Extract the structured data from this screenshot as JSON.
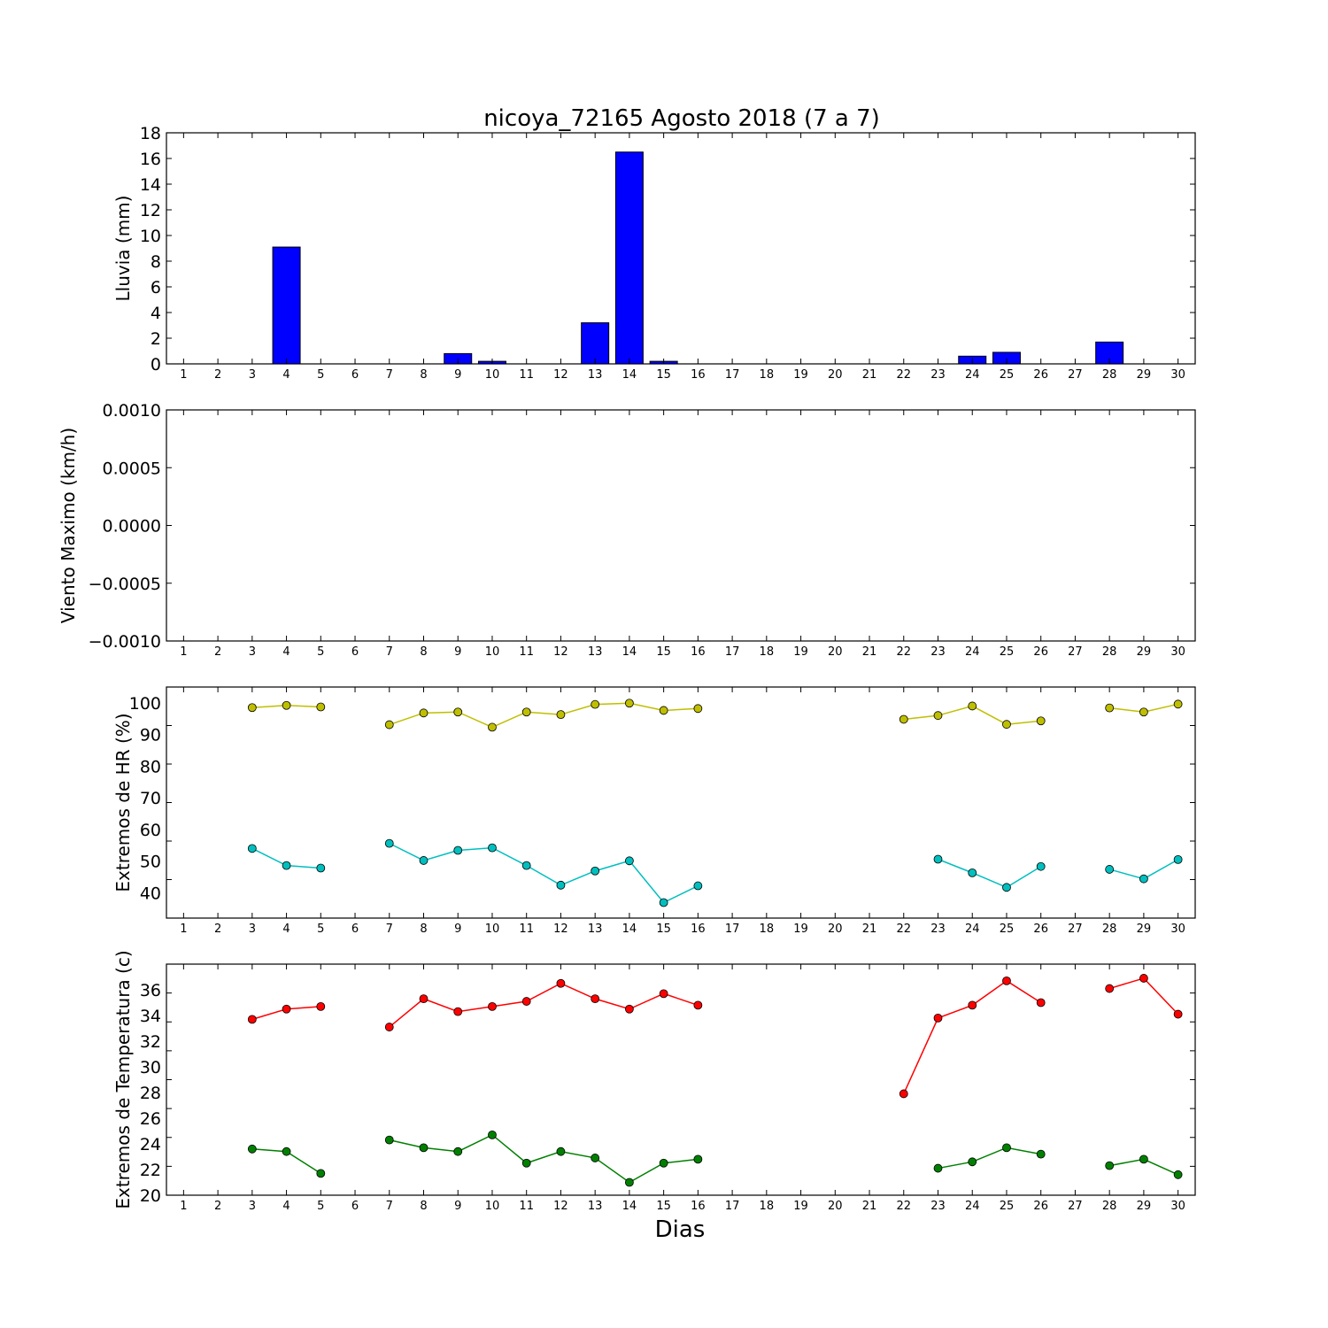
{
  "figure": {
    "title": "nicoya_72165 Agosto 2018  (7 a 7)",
    "xlabel": "Dias"
  },
  "chart_data": [
    {
      "type": "bar",
      "ylabel": "Lluvia (mm)",
      "xlim": [
        0.5,
        30.5
      ],
      "ylim": [
        0,
        18
      ],
      "yticks": [
        "0",
        "2",
        "4",
        "6",
        "8",
        "10",
        "12",
        "14",
        "16",
        "18"
      ],
      "categories": [
        "1",
        "2",
        "3",
        "4",
        "5",
        "6",
        "7",
        "8",
        "9",
        "10",
        "11",
        "12",
        "13",
        "14",
        "15",
        "16",
        "17",
        "18",
        "19",
        "20",
        "21",
        "22",
        "23",
        "24",
        "25",
        "26",
        "27",
        "28",
        "29",
        "30"
      ],
      "values": [
        0,
        0,
        0,
        9.1,
        0,
        0,
        0,
        0,
        0.8,
        0.2,
        0,
        0,
        3.2,
        16.5,
        0.2,
        0,
        0,
        0,
        0,
        0,
        0,
        0,
        0,
        0.6,
        0.9,
        0,
        0,
        1.7,
        0,
        0
      ],
      "color": "#0000ff",
      "grid": false
    },
    {
      "type": "line",
      "ylabel": "Viento Maximo (km/h)",
      "xlim": [
        0.5,
        30.5
      ],
      "ylim": [
        -0.001,
        0.001
      ],
      "yticks": [
        "−0.0010",
        "−0.0005",
        "0.0000",
        "0.0005",
        "0.0010"
      ],
      "categories": [
        "1",
        "2",
        "3",
        "4",
        "5",
        "6",
        "7",
        "8",
        "9",
        "10",
        "11",
        "12",
        "13",
        "14",
        "15",
        "16",
        "17",
        "18",
        "19",
        "20",
        "21",
        "22",
        "23",
        "24",
        "25",
        "26",
        "27",
        "28",
        "29",
        "30"
      ],
      "series": [],
      "grid": false
    },
    {
      "type": "line",
      "ylabel": "Extremos de HR (%)",
      "xlim": [
        0.5,
        30.5
      ],
      "ylim": [
        32,
        105
      ],
      "yticks": [
        "40",
        "50",
        "60",
        "70",
        "80",
        "90",
        "100"
      ],
      "categories": [
        "1",
        "2",
        "3",
        "4",
        "5",
        "6",
        "7",
        "8",
        "9",
        "10",
        "11",
        "12",
        "13",
        "14",
        "15",
        "16",
        "17",
        "18",
        "19",
        "20",
        "21",
        "22",
        "23",
        "24",
        "25",
        "26",
        "27",
        "28",
        "29",
        "30"
      ],
      "series": [
        {
          "color": "#bfbf00",
          "x": [
            3,
            4,
            5,
            7,
            8,
            9,
            10,
            11,
            12,
            13,
            14,
            15,
            16,
            22,
            23,
            24,
            25,
            26,
            28,
            29,
            30
          ],
          "values": [
            98.5,
            99.2,
            98.7,
            93.1,
            96.8,
            97.1,
            92.3,
            97.1,
            96.3,
            99.5,
            99.9,
            97.6,
            98.2,
            94.8,
            96.0,
            99.0,
            93.2,
            94.3,
            98.4,
            97.1,
            99.6
          ]
        },
        {
          "color": "#00bfbf",
          "x": [
            3,
            4,
            5,
            7,
            8,
            9,
            10,
            11,
            12,
            13,
            14,
            15,
            16,
            23,
            24,
            25,
            26,
            28,
            29,
            30
          ],
          "values": [
            54.0,
            48.6,
            47.8,
            55.6,
            50.2,
            53.4,
            54.2,
            48.6,
            42.4,
            46.9,
            50.1,
            36.9,
            42.2,
            50.6,
            46.3,
            41.7,
            48.3,
            47.4,
            44.4,
            50.5
          ]
        }
      ],
      "grid": false
    },
    {
      "type": "line",
      "ylabel": "Extremos de Temperatura (c)",
      "xlim": [
        0.5,
        30.5
      ],
      "ylim": [
        20,
        38
      ],
      "yticks": [
        "20",
        "22",
        "24",
        "26",
        "28",
        "30",
        "32",
        "34",
        "36"
      ],
      "categories": [
        "1",
        "2",
        "3",
        "4",
        "5",
        "6",
        "7",
        "8",
        "9",
        "10",
        "11",
        "12",
        "13",
        "14",
        "15",
        "16",
        "17",
        "18",
        "19",
        "20",
        "21",
        "22",
        "23",
        "24",
        "25",
        "26",
        "27",
        "28",
        "29",
        "30"
      ],
      "series": [
        {
          "color": "#ff0000",
          "x": [
            3,
            4,
            5,
            7,
            8,
            9,
            10,
            11,
            12,
            13,
            14,
            15,
            16,
            22,
            23,
            24,
            25,
            26,
            28,
            29,
            30
          ],
          "values": [
            33.7,
            34.5,
            34.7,
            33.1,
            35.3,
            34.3,
            34.7,
            35.1,
            36.5,
            35.3,
            34.5,
            35.7,
            34.8,
            27.9,
            33.8,
            34.8,
            36.7,
            35.0,
            36.1,
            36.9,
            34.1
          ]
        },
        {
          "color": "#008000",
          "x": [
            3,
            4,
            5,
            7,
            8,
            9,
            10,
            11,
            12,
            13,
            14,
            15,
            16,
            23,
            24,
            25,
            26,
            28,
            29,
            30
          ],
          "values": [
            23.6,
            23.4,
            21.7,
            24.3,
            23.7,
            23.4,
            24.7,
            22.5,
            23.4,
            22.9,
            21.0,
            22.5,
            22.8,
            22.1,
            22.6,
            23.7,
            23.2,
            22.3,
            22.8,
            21.6
          ]
        }
      ],
      "grid": false
    }
  ]
}
